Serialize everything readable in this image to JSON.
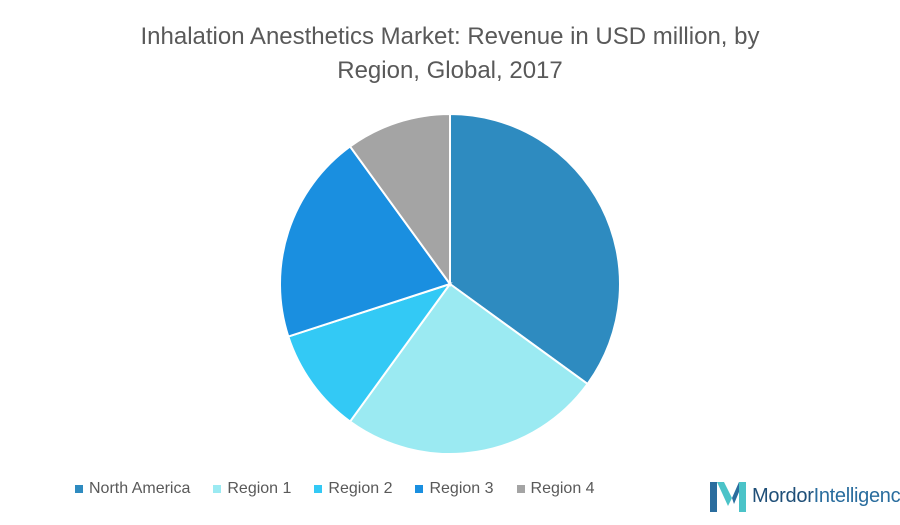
{
  "title_line1": "Inhalation Anesthetics Market: Revenue in USD million, by",
  "title_line2": "Region, Global, 2017",
  "chart_data": {
    "type": "pie",
    "title": "Inhalation Anesthetics Market: Revenue in USD million, by Region, Global, 2017",
    "start_angle": "12 o'clock, clockwise",
    "legend_position": "bottom",
    "slices": [
      {
        "label": "North America",
        "value": 35,
        "color": "#2e8bc0"
      },
      {
        "label": "Region 1",
        "value": 25,
        "color": "#9beaf2"
      },
      {
        "label": "Region 2",
        "value": 10,
        "color": "#33c9f5"
      },
      {
        "label": "Region 3",
        "value": 20,
        "color": "#1a8fe0"
      },
      {
        "label": "Region 4",
        "value": 10,
        "color": "#a4a4a4"
      }
    ]
  },
  "logo": {
    "brand_first": "Mordor",
    "brand_second": "Intelligence",
    "mark_colors": [
      "#2a6d9e",
      "#4bc3c8"
    ]
  }
}
